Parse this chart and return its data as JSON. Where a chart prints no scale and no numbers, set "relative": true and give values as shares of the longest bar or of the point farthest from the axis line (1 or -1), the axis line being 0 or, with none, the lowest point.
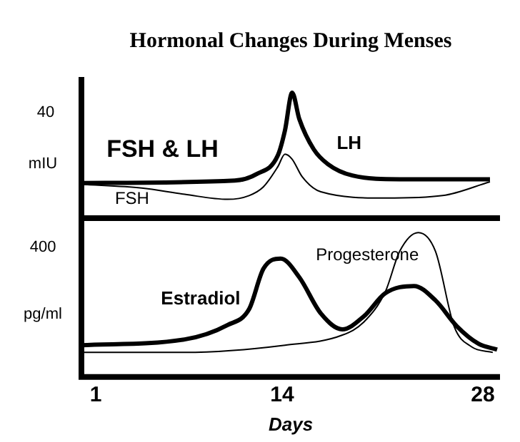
{
  "chart_data": [
    {
      "type": "line",
      "title": "Hormonal Changes During Menses",
      "ylabel": "mIU",
      "relative": true,
      "xlim": [
        0,
        29.2
      ],
      "xticks": [
        1,
        14,
        28
      ],
      "tick_labels": false,
      "annotations": [
        "FSH & LH",
        "40"
      ],
      "series": [
        {
          "name": "LH",
          "color": "#000000",
          "x": [
            0,
            10.7,
            12.2,
            13.7,
            14.2,
            14.7,
            15.2,
            16.2,
            17.2,
            18.9,
            22.2,
            28.5
          ],
          "values": [
            0.28,
            0.3,
            0.35,
            0.5,
            0.7,
            1.0,
            0.79,
            0.55,
            0.43,
            0.34,
            0.31,
            0.31
          ]
        },
        {
          "name": "FSH",
          "color": "#000000",
          "x": [
            0,
            4.2,
            7.2,
            10.2,
            11.7,
            12.7,
            13.7,
            14.2,
            14.7,
            15.4,
            16.7,
            21.2,
            25.2,
            28.5
          ],
          "values": [
            0.27,
            0.24,
            0.19,
            0.15,
            0.18,
            0.25,
            0.41,
            0.51,
            0.47,
            0.33,
            0.21,
            0.16,
            0.18,
            0.29
          ]
        }
      ]
    },
    {
      "type": "line",
      "xlabel": "Days",
      "ylabel": "pg/ml",
      "relative": true,
      "xlim": [
        0,
        29.2
      ],
      "xticks": [
        1,
        14,
        28
      ],
      "tick_labels": "x",
      "annotations": [
        "400"
      ],
      "series": [
        {
          "name": "Estradiol",
          "color": "#000000",
          "x": [
            0,
            7.2,
            10.2,
            11.7,
            12.7,
            13.9,
            15.2,
            16.7,
            18.2,
            19.7,
            21.2,
            23.2,
            24.7,
            26.2,
            27.7,
            29.0
          ],
          "values": [
            0.22,
            0.26,
            0.36,
            0.47,
            0.75,
            0.82,
            0.69,
            0.44,
            0.33,
            0.42,
            0.58,
            0.63,
            0.53,
            0.35,
            0.23,
            0.19
          ]
        },
        {
          "name": "Progesterone",
          "color": "#000000",
          "x": [
            0,
            7.2,
            14.2,
            18.2,
            19.7,
            21.2,
            22.2,
            23.5,
            24.7,
            26.0,
            27.2,
            28.7
          ],
          "values": [
            0.17,
            0.17,
            0.22,
            0.29,
            0.38,
            0.59,
            0.87,
            1.0,
            0.87,
            0.35,
            0.21,
            0.17
          ]
        }
      ]
    }
  ]
}
